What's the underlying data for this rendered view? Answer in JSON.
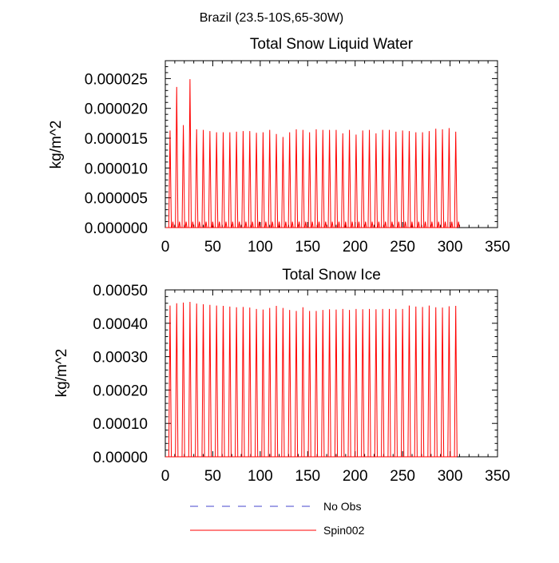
{
  "page_title": "Brazil (23.5-10S,65-30W)",
  "chart_data": [
    {
      "type": "line",
      "title": "Total Snow Liquid Water",
      "ylabel": "kg/m^2",
      "xlabel": "",
      "xlim": [
        0,
        350
      ],
      "ylim": [
        0,
        2.8e-05
      ],
      "x_ticks": [
        "0",
        "50",
        "100",
        "150",
        "200",
        "250",
        "300",
        "350"
      ],
      "y_ticks": [
        "0.000000",
        "0.000005",
        "0.000010",
        "0.000015",
        "0.000020",
        "0.000025"
      ],
      "y_tick_values": [
        0,
        5e-06,
        1e-05,
        1.5e-05,
        2e-05,
        2.5e-05
      ],
      "series": [
        {
          "name": "Spin002",
          "color": "#ff0000",
          "spike_x": [
            5,
            12,
            19,
            26,
            33,
            40,
            47,
            54,
            61,
            68,
            75,
            82,
            89,
            96,
            103,
            110,
            117,
            124,
            131,
            138,
            145,
            152,
            159,
            166,
            173,
            180,
            187,
            194,
            201,
            208,
            215,
            222,
            229,
            236,
            243,
            250,
            257,
            264,
            271,
            278,
            285,
            292,
            299,
            306
          ],
          "spike_y": [
            1.63e-05,
            2.36e-05,
            1.72e-05,
            2.49e-05,
            1.65e-05,
            1.64e-05,
            1.62e-05,
            1.6e-05,
            1.6e-05,
            1.6e-05,
            1.61e-05,
            1.62e-05,
            1.62e-05,
            1.59e-05,
            1.6e-05,
            1.64e-05,
            1.57e-05,
            1.52e-05,
            1.6e-05,
            1.65e-05,
            1.64e-05,
            1.6e-05,
            1.65e-05,
            1.64e-05,
            1.64e-05,
            1.64e-05,
            1.58e-05,
            1.64e-05,
            1.56e-05,
            1.63e-05,
            1.64e-05,
            1.58e-05,
            1.64e-05,
            1.64e-05,
            1.61e-05,
            1.63e-05,
            1.62e-05,
            1.6e-05,
            1.6e-05,
            1.62e-05,
            1.66e-05,
            1.65e-05,
            1.67e-05,
            1.61e-05
          ],
          "secondary_spike_y": 1e-06
        }
      ]
    },
    {
      "type": "line",
      "title": "Total Snow Ice",
      "ylabel": "kg/m^2",
      "xlabel": "",
      "xlim": [
        0,
        350
      ],
      "ylim": [
        0,
        0.0005
      ],
      "x_ticks": [
        "0",
        "50",
        "100",
        "150",
        "200",
        "250",
        "300",
        "350"
      ],
      "y_ticks": [
        "0.00000",
        "0.00010",
        "0.00020",
        "0.00030",
        "0.00040",
        "0.00050"
      ],
      "y_tick_values": [
        0,
        0.0001,
        0.0002,
        0.0003,
        0.0004,
        0.0005
      ],
      "series": [
        {
          "name": "Spin002",
          "color": "#ff0000",
          "spike_x": [
            5,
            12,
            19,
            26,
            33,
            40,
            47,
            54,
            61,
            68,
            75,
            82,
            89,
            96,
            103,
            110,
            117,
            124,
            131,
            138,
            145,
            152,
            159,
            166,
            173,
            180,
            187,
            194,
            201,
            208,
            215,
            222,
            229,
            236,
            243,
            250,
            257,
            264,
            271,
            278,
            285,
            292,
            299,
            306
          ],
          "spike_y": [
            0.000453,
            0.00046,
            0.000462,
            0.000464,
            0.000459,
            0.000457,
            0.000455,
            0.000453,
            0.000452,
            0.00045,
            0.000448,
            0.000449,
            0.000447,
            0.000443,
            0.000441,
            0.000446,
            0.000452,
            0.000446,
            0.00044,
            0.000437,
            0.000448,
            0.000437,
            0.000437,
            0.00044,
            0.000442,
            0.000441,
            0.000443,
            0.00044,
            0.000443,
            0.000442,
            0.000443,
            0.000442,
            0.000443,
            0.000443,
            0.000443,
            0.000443,
            0.000453,
            0.00045,
            0.000449,
            0.000453,
            0.000448,
            0.000447,
            0.000451,
            0.000452
          ]
        }
      ]
    }
  ],
  "legend": {
    "position": "bottom-center",
    "items": [
      {
        "label": "No Obs",
        "color": "#4444cc",
        "dash": "dashed"
      },
      {
        "label": "Spin002",
        "color": "#ff0000",
        "dash": "solid"
      }
    ]
  }
}
